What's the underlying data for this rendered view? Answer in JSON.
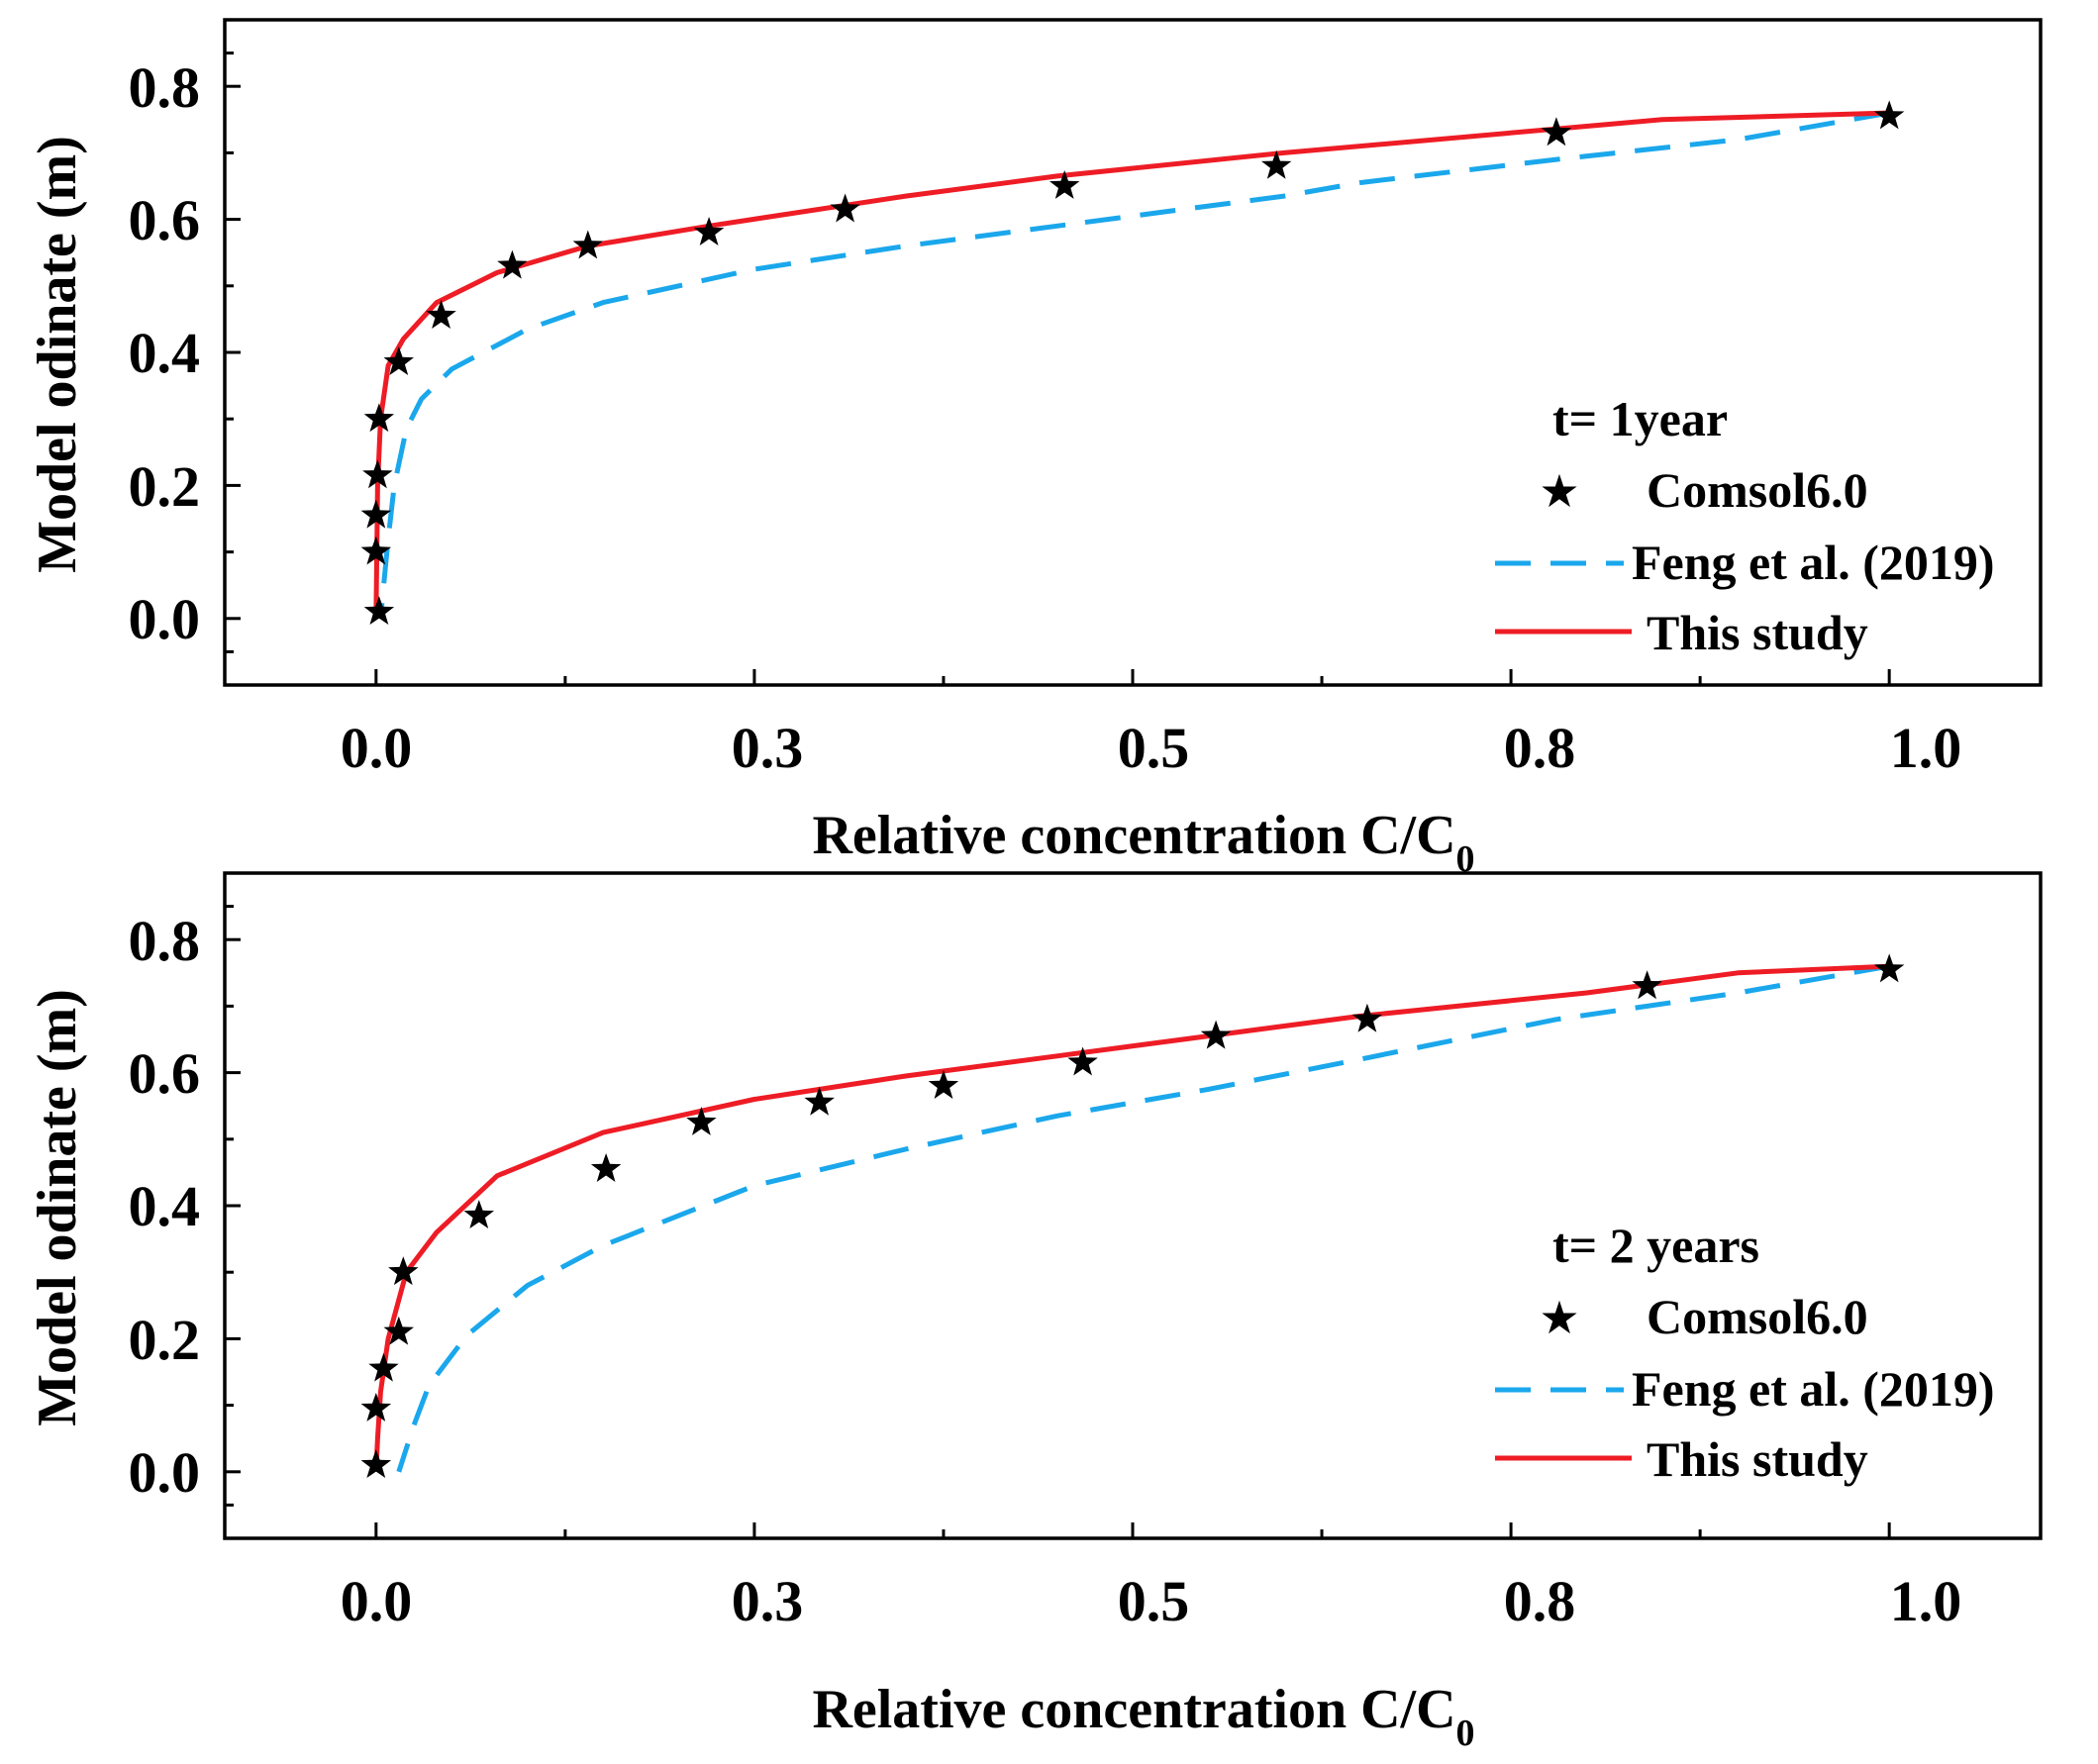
{
  "colors": {
    "comsol": "#000000",
    "feng": "#1aa7ec",
    "this_study": "#ee1c25"
  },
  "chart_data": [
    {
      "type": "line",
      "xlabel": "Relative concentration C/C",
      "xlabel_sub": "0",
      "ylabel": "Model odinate (m)",
      "xlim": [
        -0.1,
        1.1
      ],
      "ylim": [
        -0.1,
        0.9
      ],
      "x_ticks": [
        0.0,
        0.25,
        0.5,
        0.75,
        1.0
      ],
      "x_tick_labels": [
        "0.0",
        "0.3",
        "0.5",
        "0.8",
        "1.0"
      ],
      "y_ticks": [
        0.0,
        0.2,
        0.4,
        0.6,
        0.8
      ],
      "y_tick_labels": [
        "0.0",
        "0.2",
        "0.4",
        "0.6",
        "0.8"
      ],
      "legend_position": "bottom-right",
      "legend_title": "t= 1year",
      "series": [
        {
          "name": "Comsol6.0",
          "style": "star",
          "x": [
            1.0,
            0.78,
            0.595,
            0.455,
            0.31,
            0.22,
            0.14,
            0.09,
            0.043,
            0.015,
            0.002,
            0.001,
            0.0,
            0.0,
            0.002
          ],
          "y": [
            0.755,
            0.73,
            0.68,
            0.65,
            0.615,
            0.58,
            0.56,
            0.53,
            0.455,
            0.385,
            0.3,
            0.215,
            0.155,
            0.1,
            0.01
          ]
        },
        {
          "name": "Feng et al. (2019)",
          "style": "dash",
          "x": [
            1.0,
            0.9,
            0.78,
            0.65,
            0.6,
            0.5,
            0.45,
            0.35,
            0.25,
            0.15,
            0.1,
            0.05,
            0.03,
            0.02,
            0.012,
            0.008,
            0.005,
            0.003
          ],
          "y": [
            0.76,
            0.72,
            0.69,
            0.655,
            0.635,
            0.605,
            0.59,
            0.56,
            0.525,
            0.475,
            0.435,
            0.375,
            0.33,
            0.285,
            0.2,
            0.12,
            0.05,
            0.0
          ]
        },
        {
          "name": "This study",
          "style": "solid",
          "x": [
            1.0,
            0.85,
            0.6,
            0.45,
            0.35,
            0.22,
            0.14,
            0.08,
            0.04,
            0.018,
            0.008,
            0.003,
            0.001,
            0.0
          ],
          "y": [
            0.76,
            0.75,
            0.7,
            0.665,
            0.635,
            0.59,
            0.56,
            0.52,
            0.475,
            0.42,
            0.38,
            0.3,
            0.2,
            0.0
          ]
        }
      ]
    },
    {
      "type": "line",
      "xlabel": "Relative concentration C/C",
      "xlabel_sub": "0",
      "ylabel": "Model odinate (m)",
      "xlim": [
        -0.1,
        1.1
      ],
      "ylim": [
        -0.1,
        0.9
      ],
      "x_ticks": [
        0.0,
        0.25,
        0.5,
        0.75,
        1.0
      ],
      "x_tick_labels": [
        "0.0",
        "0.3",
        "0.5",
        "0.8",
        "1.0"
      ],
      "y_ticks": [
        0.0,
        0.2,
        0.4,
        0.6,
        0.8
      ],
      "y_tick_labels": [
        "0.0",
        "0.2",
        "0.4",
        "0.6",
        "0.8"
      ],
      "legend_position": "bottom-right",
      "legend_title": "t= 2 years",
      "series": [
        {
          "name": "Comsol6.0",
          "style": "star",
          "x": [
            1.0,
            0.84,
            0.655,
            0.555,
            0.467,
            0.375,
            0.293,
            0.215,
            0.152,
            0.068,
            0.018,
            0.015,
            0.005,
            0.0,
            0.0
          ],
          "y": [
            0.755,
            0.73,
            0.68,
            0.655,
            0.615,
            0.58,
            0.555,
            0.525,
            0.455,
            0.385,
            0.3,
            0.21,
            0.155,
            0.095,
            0.01
          ]
        },
        {
          "name": "Feng et al. (2019)",
          "style": "dash",
          "x": [
            1.0,
            0.9,
            0.78,
            0.65,
            0.55,
            0.45,
            0.35,
            0.25,
            0.15,
            0.1,
            0.06,
            0.035,
            0.025,
            0.015
          ],
          "y": [
            0.76,
            0.72,
            0.68,
            0.62,
            0.575,
            0.535,
            0.485,
            0.43,
            0.34,
            0.28,
            0.205,
            0.13,
            0.07,
            0.0
          ]
        },
        {
          "name": "This study",
          "style": "solid",
          "x": [
            1.0,
            0.9,
            0.8,
            0.65,
            0.55,
            0.45,
            0.35,
            0.25,
            0.15,
            0.08,
            0.04,
            0.02,
            0.008,
            0.003,
            0.001,
            0.0
          ],
          "y": [
            0.76,
            0.75,
            0.72,
            0.685,
            0.655,
            0.625,
            0.595,
            0.56,
            0.51,
            0.445,
            0.36,
            0.3,
            0.2,
            0.12,
            0.05,
            0.0
          ]
        }
      ]
    }
  ]
}
